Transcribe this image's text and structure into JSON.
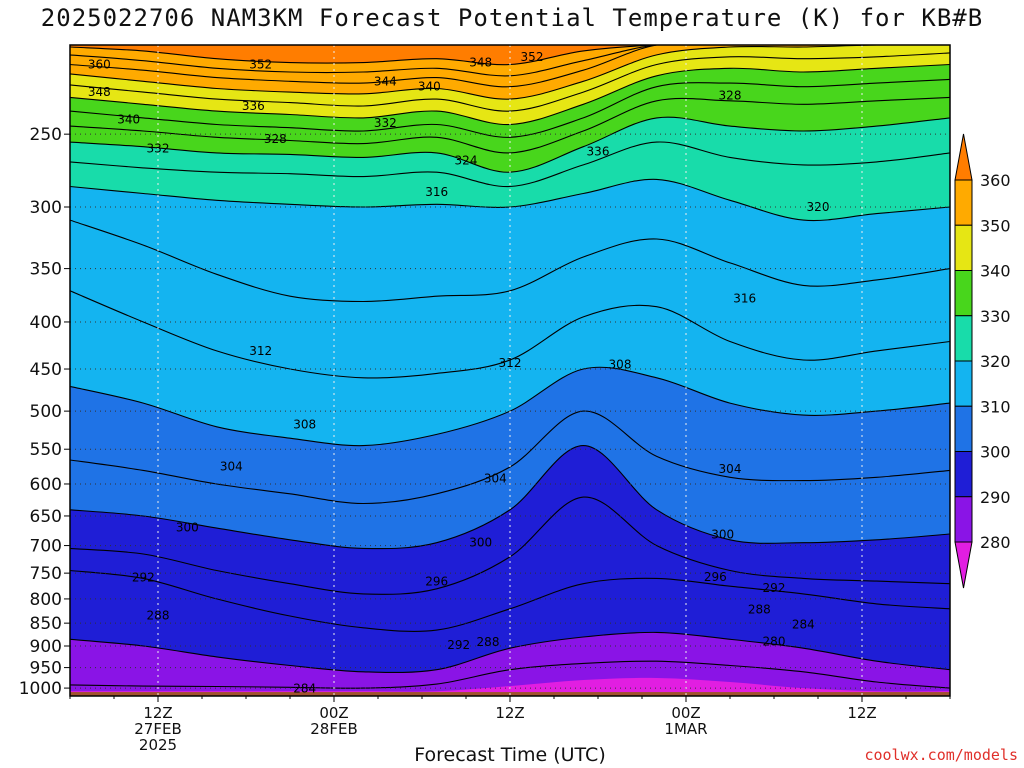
{
  "chart_data": {
    "type": "heatmap",
    "title": "2025022706 NAM3KM Forecast Potential Temperature (K) for KB#B",
    "xlabel": "Forecast Time (UTC)",
    "ylabel": "",
    "y_scale": "log-pressure",
    "y_ticks_hPa": [
      250,
      300,
      350,
      400,
      450,
      500,
      550,
      600,
      650,
      700,
      750,
      800,
      850,
      900,
      950,
      1000
    ],
    "ylim_hPa": [
      1000,
      200
    ],
    "x_ticks": [
      {
        "hour": 6,
        "lines": [
          "12Z",
          "27FEB",
          "2025"
        ]
      },
      {
        "hour": 18,
        "lines": [
          "00Z",
          "28FEB"
        ]
      },
      {
        "hour": 30,
        "lines": [
          "12Z"
        ]
      },
      {
        "hour": 42,
        "lines": [
          "00Z",
          "1MAR"
        ]
      },
      {
        "hour": 54,
        "lines": [
          "12Z"
        ]
      }
    ],
    "xlim_hours": [
      0,
      60
    ],
    "colorbar": {
      "levels": [
        280,
        290,
        300,
        310,
        320,
        330,
        340,
        350,
        360
      ],
      "colors": [
        "#e11ee1",
        "#8a14e6",
        "#1f1ed6",
        "#1f73e6",
        "#14b4f0",
        "#18dcaa",
        "#48d61c",
        "#e6e614",
        "#ffaa00",
        "#ff7d00"
      ],
      "labels": [
        "280",
        "290",
        "300",
        "310",
        "320",
        "330",
        "340",
        "350",
        "360"
      ]
    },
    "isotherm_spacing_K": 2,
    "surface_pressure_hPa": 1010,
    "isentropes_K": [
      {
        "theta": 284,
        "p": [
          992,
          995,
          996,
          998,
          1000,
          990,
          955,
          940,
          935,
          945,
          960,
          985,
          1000
        ]
      },
      {
        "theta": 288,
        "p": [
          885,
          900,
          925,
          945,
          960,
          955,
          905,
          880,
          870,
          885,
          905,
          935,
          955
        ]
      },
      {
        "theta": 292,
        "p": [
          745,
          760,
          800,
          835,
          860,
          865,
          820,
          770,
          760,
          775,
          790,
          810,
          820
        ]
      },
      {
        "theta": 296,
        "p": [
          705,
          715,
          745,
          770,
          790,
          780,
          720,
          620,
          700,
          745,
          760,
          765,
          770
        ]
      },
      {
        "theta": 300,
        "p": [
          640,
          650,
          670,
          690,
          705,
          695,
          640,
          545,
          640,
          690,
          695,
          690,
          680
        ]
      },
      {
        "theta": 304,
        "p": [
          565,
          580,
          600,
          615,
          630,
          615,
          575,
          500,
          560,
          590,
          595,
          590,
          580
        ]
      },
      {
        "theta": 308,
        "p": [
          470,
          490,
          520,
          535,
          545,
          530,
          500,
          450,
          460,
          490,
          505,
          500,
          490
        ]
      },
      {
        "theta": 312,
        "p": [
          370,
          400,
          430,
          450,
          460,
          455,
          440,
          395,
          385,
          420,
          440,
          430,
          420
        ]
      },
      {
        "theta": 316,
        "p": [
          310,
          330,
          355,
          375,
          380,
          375,
          370,
          340,
          325,
          345,
          365,
          360,
          350
        ]
      },
      {
        "theta": 320,
        "p": [
          285,
          290,
          295,
          298,
          300,
          298,
          300,
          290,
          280,
          295,
          310,
          305,
          300
        ]
      },
      {
        "theta": 324,
        "p": [
          268,
          272,
          275,
          276,
          278,
          275,
          285,
          270,
          255,
          265,
          270,
          268,
          262
        ]
      },
      {
        "theta": 328,
        "p": [
          255,
          258,
          262,
          263,
          265,
          262,
          275,
          258,
          240,
          245,
          248,
          245,
          240
        ]
      },
      {
        "theta": 332,
        "p": [
          245,
          248,
          252,
          254,
          256,
          252,
          262,
          248,
          230,
          230,
          232,
          230,
          228
        ]
      },
      {
        "theta": 336,
        "p": [
          236,
          240,
          244,
          246,
          248,
          244,
          252,
          240,
          222,
          220,
          222,
          220,
          218
        ]
      },
      {
        "theta": 340,
        "p": [
          228,
          232,
          236,
          238,
          240,
          236,
          244,
          232,
          216,
          212,
          214,
          212,
          210
        ]
      },
      {
        "theta": 344,
        "p": [
          221,
          225,
          229,
          231,
          233,
          229,
          236,
          225,
          210,
          206,
          207,
          206,
          204
        ]
      },
      {
        "theta": 348,
        "p": [
          215,
          219,
          223,
          225,
          226,
          223,
          229,
          219,
          205,
          201,
          201,
          200,
          200
        ]
      },
      {
        "theta": 352,
        "p": [
          210,
          213,
          217,
          219,
          220,
          217,
          222,
          213,
          200,
          200,
          200,
          200,
          200
        ]
      },
      {
        "theta": 356,
        "p": [
          205,
          208,
          212,
          214,
          214,
          212,
          216,
          208,
          200,
          200,
          200,
          200,
          200
        ]
      },
      {
        "theta": 360,
        "p": [
          201,
          203,
          207,
          209,
          209,
          207,
          210,
          203,
          200,
          200,
          200,
          200,
          200
        ]
      }
    ],
    "isentrope_times_hours": [
      0,
      5,
      10,
      15,
      20,
      25,
      30,
      35,
      40,
      45,
      50,
      55,
      60
    ],
    "contour_labels": [
      {
        "text": "360",
        "hour": 2.0,
        "p": 210
      },
      {
        "text": "352",
        "hour": 13.0,
        "p": 210
      },
      {
        "text": "348",
        "hour": 28.0,
        "p": 209
      },
      {
        "text": "352",
        "hour": 31.5,
        "p": 206
      },
      {
        "text": "348",
        "hour": 2.0,
        "p": 225
      },
      {
        "text": "344",
        "hour": 21.5,
        "p": 219
      },
      {
        "text": "340",
        "hour": 24.5,
        "p": 222
      },
      {
        "text": "336",
        "hour": 12.5,
        "p": 233
      },
      {
        "text": "340",
        "hour": 4.0,
        "p": 241
      },
      {
        "text": "328",
        "hour": 14.0,
        "p": 253
      },
      {
        "text": "332",
        "hour": 21.5,
        "p": 243
      },
      {
        "text": "332",
        "hour": 6.0,
        "p": 259
      },
      {
        "text": "324",
        "hour": 27.0,
        "p": 267
      },
      {
        "text": "336",
        "hour": 36.0,
        "p": 261
      },
      {
        "text": "328",
        "hour": 45.0,
        "p": 227
      },
      {
        "text": "316",
        "hour": 25.0,
        "p": 289
      },
      {
        "text": "320",
        "hour": 51.0,
        "p": 300
      },
      {
        "text": "316",
        "hour": 46.0,
        "p": 377
      },
      {
        "text": "312",
        "hour": 13.0,
        "p": 430
      },
      {
        "text": "312",
        "hour": 30.0,
        "p": 443
      },
      {
        "text": "308",
        "hour": 37.5,
        "p": 445
      },
      {
        "text": "308",
        "hour": 16.0,
        "p": 517
      },
      {
        "text": "304",
        "hour": 11.0,
        "p": 574
      },
      {
        "text": "304",
        "hour": 29.0,
        "p": 592
      },
      {
        "text": "304",
        "hour": 45.0,
        "p": 578
      },
      {
        "text": "300",
        "hour": 8.0,
        "p": 669
      },
      {
        "text": "300",
        "hour": 28.0,
        "p": 695
      },
      {
        "text": "300",
        "hour": 44.5,
        "p": 681
      },
      {
        "text": "292",
        "hour": 5.0,
        "p": 758
      },
      {
        "text": "296",
        "hour": 25.0,
        "p": 766
      },
      {
        "text": "296",
        "hour": 44.0,
        "p": 757
      },
      {
        "text": "292",
        "hour": 48.0,
        "p": 778
      },
      {
        "text": "288",
        "hour": 6.0,
        "p": 834
      },
      {
        "text": "288",
        "hour": 47.0,
        "p": 821
      },
      {
        "text": "284",
        "hour": 50.0,
        "p": 853
      },
      {
        "text": "280",
        "hour": 48.0,
        "p": 890
      },
      {
        "text": "292",
        "hour": 26.5,
        "p": 898
      },
      {
        "text": "288",
        "hour": 28.5,
        "p": 891
      },
      {
        "text": "284",
        "hour": 16.0,
        "p": 1001
      }
    ]
  },
  "credit": "coolwx.com/models"
}
